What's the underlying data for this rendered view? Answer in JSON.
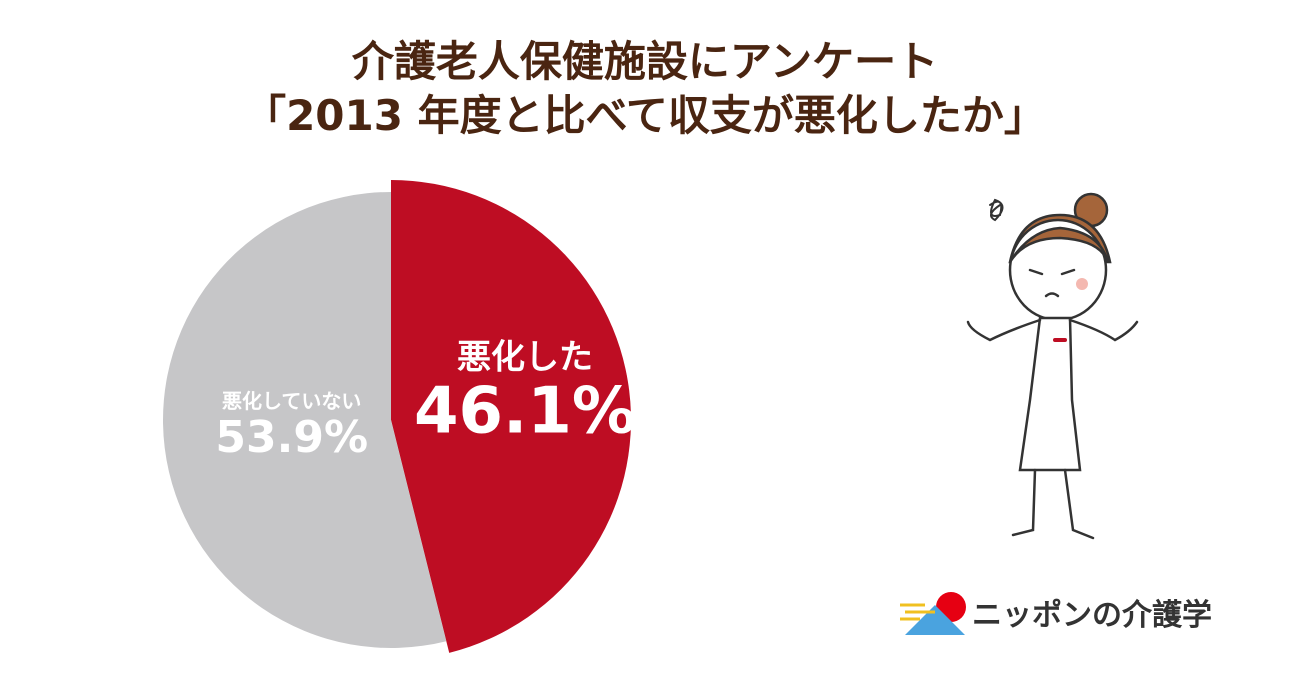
{
  "chart_data": {
    "type": "pie",
    "title": [
      "介護老人保健施設にアンケート",
      "「2013 年度と比べて収支が悪化したか」"
    ],
    "categories": [
      "悪化した",
      "悪化していない"
    ],
    "values": [
      46.1,
      53.9
    ],
    "value_labels": [
      "46.1%",
      "53.9%"
    ],
    "colors": [
      "#be0d23",
      "#c6c6c8"
    ]
  },
  "logo": {
    "text": "ニッポンの介護学"
  }
}
